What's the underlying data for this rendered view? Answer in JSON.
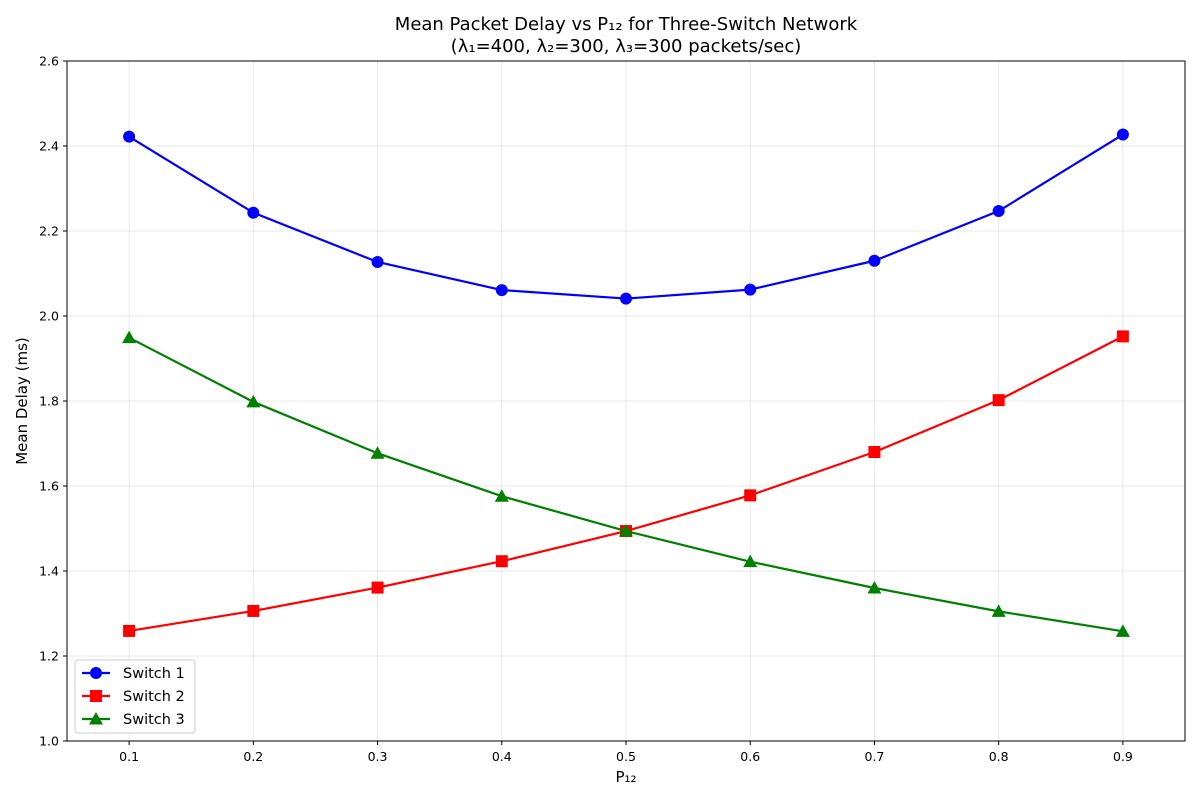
{
  "chart_data": {
    "type": "line",
    "title": "Mean Packet Delay vs P₁₂ for Three-Switch Network",
    "subtitle": "(λ₁=400, λ₂=300, λ₃=300 packets/sec)",
    "xlabel": "P₁₂",
    "ylabel": "Mean Delay (ms)",
    "xlim": [
      0.05,
      0.95
    ],
    "ylim": [
      1.0,
      2.6
    ],
    "x": [
      0.1,
      0.2,
      0.3,
      0.4,
      0.5,
      0.6,
      0.7,
      0.8,
      0.9
    ],
    "xticks": [
      0.1,
      0.2,
      0.3,
      0.4,
      0.5,
      0.6,
      0.7,
      0.8,
      0.9
    ],
    "xtick_labels": [
      "0.1",
      "0.2",
      "0.3",
      "0.4",
      "0.5",
      "0.6",
      "0.7",
      "0.8",
      "0.9"
    ],
    "yticks": [
      1.0,
      1.2,
      1.4,
      1.6,
      1.8,
      2.0,
      2.2,
      2.4,
      2.6
    ],
    "ytick_labels": [
      "1.0",
      "1.2",
      "1.4",
      "1.6",
      "1.8",
      "2.0",
      "2.2",
      "2.4",
      "2.6"
    ],
    "grid": true,
    "legend_position": "lower-left",
    "series": [
      {
        "name": "Switch 1",
        "color": "#0000ff",
        "marker": "circle",
        "values": [
          2.422,
          2.243,
          2.127,
          2.061,
          2.041,
          2.062,
          2.13,
          2.247,
          2.427
        ]
      },
      {
        "name": "Switch 2",
        "color": "#ff0000",
        "marker": "square",
        "values": [
          1.259,
          1.306,
          1.361,
          1.423,
          1.494,
          1.578,
          1.68,
          1.802,
          1.952
        ]
      },
      {
        "name": "Switch 3",
        "color": "#008000",
        "marker": "triangle",
        "values": [
          1.949,
          1.798,
          1.677,
          1.576,
          1.494,
          1.422,
          1.36,
          1.305,
          1.258
        ]
      }
    ]
  }
}
